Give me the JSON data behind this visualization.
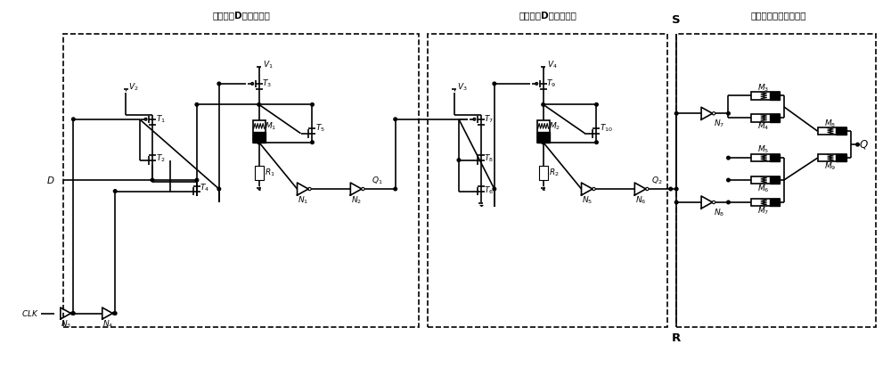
{
  "bg_color": "#ffffff",
  "line_color": "#000000",
  "box1_label": "前级忆阻D锁存器模块",
  "box2_label": "后级忆阻D锁存器模块",
  "box3_label": "异步忆阻置位复位模块",
  "figsize": [
    10.0,
    4.32
  ],
  "dpi": 100
}
